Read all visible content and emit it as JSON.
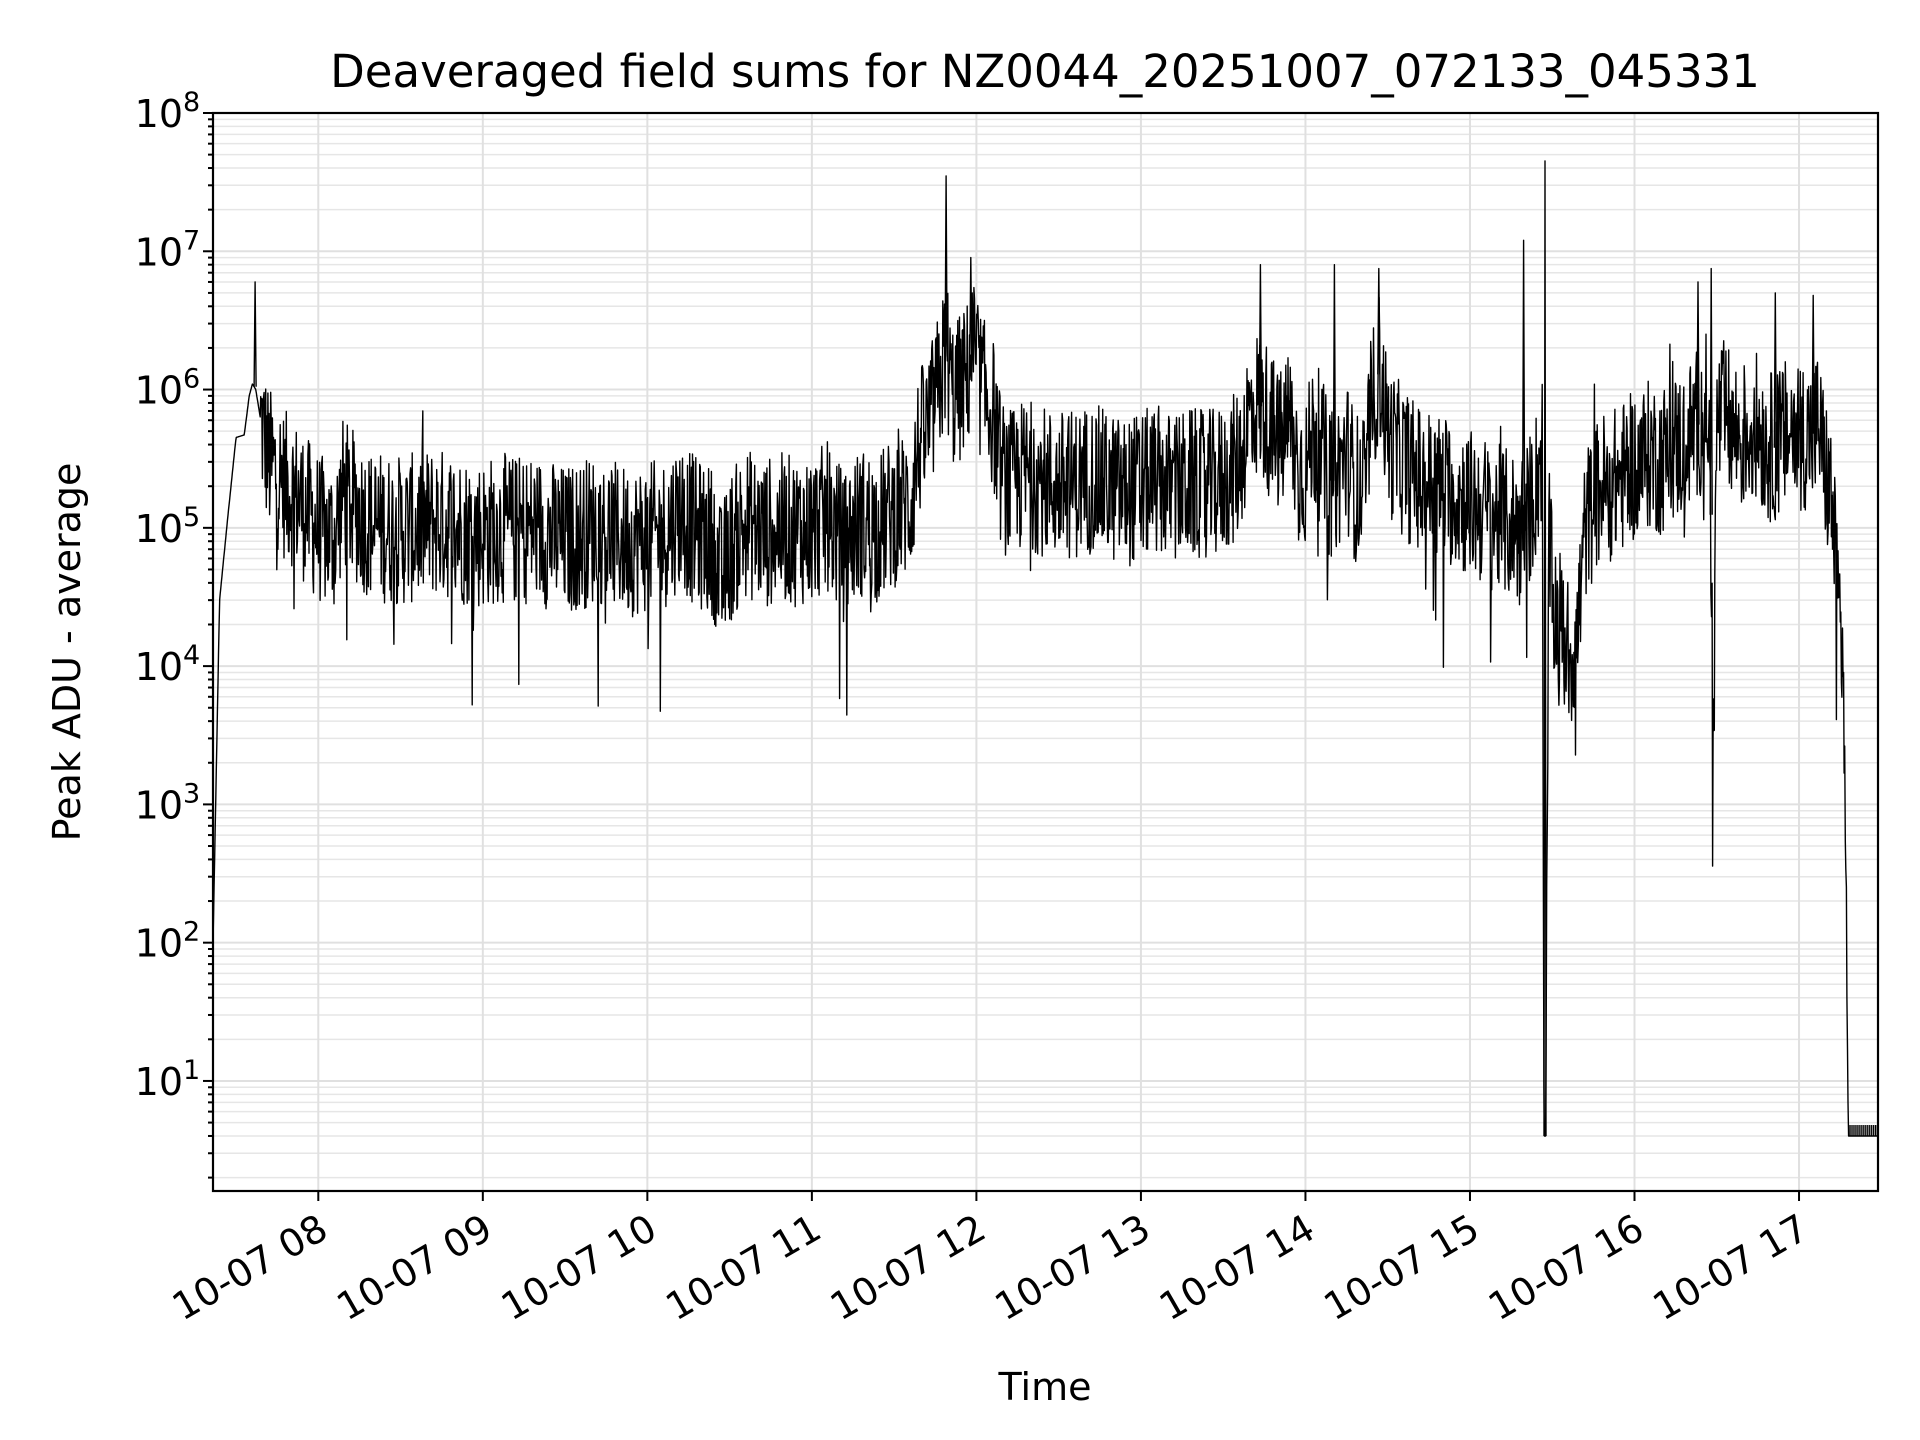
{
  "chart_data": {
    "type": "line",
    "title": "Deaveraged field sums for NZ0044_20251007_072133_045331",
    "xlabel": "Time",
    "ylabel": "Peak ADU - average",
    "yscale": "log",
    "ylim": [
      1.6,
      100000000
    ],
    "y_tick_values": [
      10,
      100,
      1000,
      10000,
      100000,
      1000000,
      10000000,
      100000000
    ],
    "y_tick_labels": [
      {
        "base": "10",
        "exp": "1"
      },
      {
        "base": "10",
        "exp": "2"
      },
      {
        "base": "10",
        "exp": "3"
      },
      {
        "base": "10",
        "exp": "4"
      },
      {
        "base": "10",
        "exp": "5"
      },
      {
        "base": "10",
        "exp": "6"
      },
      {
        "base": "10",
        "exp": "7"
      },
      {
        "base": "10",
        "exp": "8"
      }
    ],
    "xlim_hours": [
      7.36,
      17.48
    ],
    "x_tick_values_hours": [
      8,
      9,
      10,
      11,
      12,
      13,
      14,
      15,
      16,
      17
    ],
    "x_tick_labels": [
      "10-07 08",
      "10-07 09",
      "10-07 10",
      "10-07 11",
      "10-07 12",
      "10-07 13",
      "10-07 14",
      "10-07 15",
      "10-07 16",
      "10-07 17"
    ],
    "grid": true,
    "series": [
      {
        "name": "Peak ADU - average",
        "x_hours": [
          7.36,
          7.4,
          7.45,
          7.5,
          7.55,
          7.58,
          7.6,
          7.62,
          7.65,
          7.7,
          7.75,
          7.8,
          7.85,
          7.9,
          7.95,
          8.0,
          8.05,
          8.1,
          8.15,
          8.2,
          8.3,
          8.4,
          8.5,
          8.6,
          8.7,
          8.8,
          8.9,
          9.0,
          9.1,
          9.2,
          9.3,
          9.4,
          9.5,
          9.6,
          9.7,
          9.8,
          9.9,
          10.0,
          10.1,
          10.2,
          10.3,
          10.4,
          10.45,
          10.5,
          10.6,
          10.7,
          10.8,
          10.9,
          11.0,
          11.1,
          11.2,
          11.23,
          11.3,
          11.4,
          11.5,
          11.6,
          11.65,
          11.7,
          11.75,
          11.8,
          11.82,
          11.85,
          11.9,
          11.95,
          11.97,
          12.0,
          12.05,
          12.1,
          12.15,
          12.2,
          12.3,
          12.4,
          12.5,
          12.6,
          12.7,
          12.8,
          12.9,
          13.0,
          13.1,
          13.2,
          13.3,
          13.4,
          13.5,
          13.55,
          13.6,
          13.65,
          13.7,
          13.75,
          13.8,
          13.85,
          13.9,
          13.95,
          14.0,
          14.05,
          14.1,
          14.15,
          14.2,
          14.25,
          14.3,
          14.35,
          14.4,
          14.45,
          14.5,
          14.55,
          14.6,
          14.65,
          14.7,
          14.8,
          14.9,
          15.0,
          15.1,
          15.2,
          15.3,
          15.35,
          15.4,
          15.44,
          15.45,
          15.46,
          15.48,
          15.5,
          15.55,
          15.6,
          15.65,
          15.7,
          15.75,
          15.8,
          15.85,
          15.9,
          15.95,
          16.0,
          16.05,
          16.1,
          16.15,
          16.2,
          16.25,
          16.3,
          16.35,
          16.4,
          16.45,
          16.48,
          16.5,
          16.55,
          16.6,
          16.65,
          16.7,
          16.75,
          16.8,
          16.85,
          16.9,
          16.95,
          17.0,
          17.05,
          17.1,
          17.12,
          17.15,
          17.2,
          17.22,
          17.25,
          17.27,
          17.3,
          17.48
        ],
        "values": [
          100,
          30000,
          120000,
          450000,
          470000,
          900000,
          1100000,
          1000000,
          600000,
          300000,
          250000,
          200000,
          180000,
          150000,
          120000,
          100000,
          90000,
          85000,
          180000,
          150000,
          110000,
          100000,
          95000,
          100000,
          110000,
          105000,
          95000,
          90000,
          100000,
          95000,
          100000,
          90000,
          80000,
          90000,
          100000,
          85000,
          80000,
          85000,
          90000,
          130000,
          90000,
          80000,
          40000,
          70000,
          110000,
          90000,
          100000,
          95000,
          100000,
          120000,
          70000,
          90000,
          110000,
          100000,
          130000,
          150000,
          400000,
          500000,
          800000,
          1500000,
          2000000,
          900000,
          1000000,
          1300000,
          2000000,
          1400000,
          900000,
          700000,
          250000,
          200000,
          250000,
          220000,
          200000,
          210000,
          230000,
          200000,
          180000,
          200000,
          220000,
          190000,
          210000,
          200000,
          220000,
          250000,
          300000,
          600000,
          800000,
          700000,
          500000,
          400000,
          600000,
          300000,
          250000,
          500000,
          350000,
          200000,
          250000,
          350000,
          200000,
          180000,
          700000,
          1500000,
          450000,
          350000,
          300000,
          250000,
          220000,
          200000,
          180000,
          150000,
          130000,
          110000,
          100000,
          120000,
          200000,
          400000,
          4,
          4,
          100000,
          30000,
          20000,
          12000,
          15000,
          100000,
          150000,
          200000,
          200000,
          220000,
          250000,
          280000,
          300000,
          350000,
          300000,
          350000,
          380000,
          400000,
          500000,
          600000,
          800000,
          3000,
          600000,
          650000,
          500000,
          450000,
          500000,
          550000,
          400000,
          380000,
          450000,
          500000,
          550000,
          450000,
          500000,
          600000,
          300000,
          150000,
          60000,
          20000,
          10000,
          4,
          4
        ]
      }
    ]
  }
}
